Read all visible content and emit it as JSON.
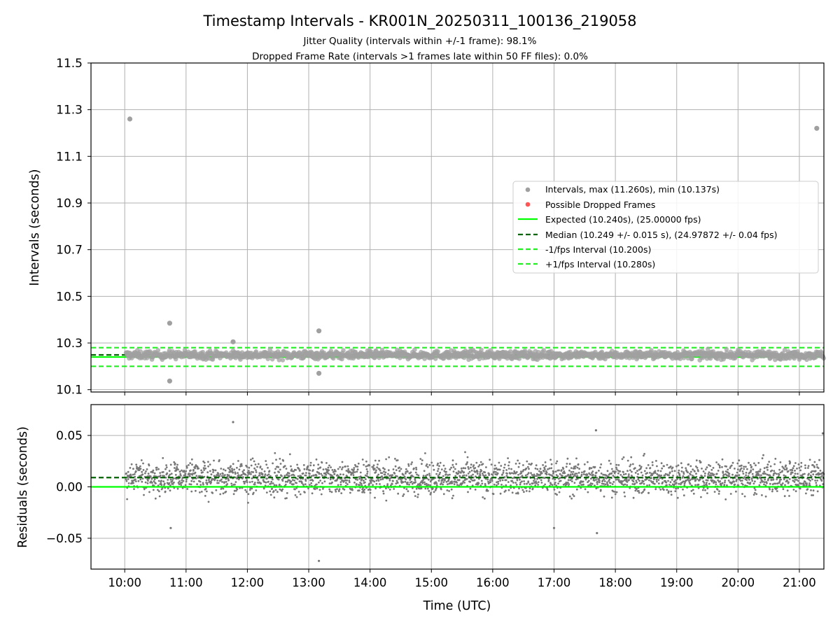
{
  "chart_data": [
    {
      "type": "scatter",
      "title": "Timestamp Intervals - KR001N_20250311_100136_219058",
      "subtitle_lines": [
        "Jitter Quality (intervals within +/-1 frame): 98.1%",
        "Dropped Frame Rate (intervals >1 frames late within 50 FF files): 0.0%"
      ],
      "ylabel": "Intervals (seconds)",
      "ylim": [
        10.09,
        11.5
      ],
      "yticks": [
        "10.1",
        "10.3",
        "10.5",
        "10.7",
        "10.9",
        "11.1",
        "11.3",
        "11.5"
      ],
      "grid": true,
      "legend_position": "center-right",
      "legend": [
        {
          "label": "Intervals, max (11.260s), min (10.137s)",
          "kind": "dot",
          "color": "#a0a0a0"
        },
        {
          "label": "Possible Dropped Frames",
          "kind": "dot",
          "color": "#ff5555"
        },
        {
          "label": "Expected (10.240s), (25.00000 fps)",
          "kind": "solid",
          "color": "#00ff00"
        },
        {
          "label": "Median (10.249 +/- 0.015 s), (24.97872 +/- 0.04 fps)",
          "kind": "dashed",
          "color": "#006400"
        },
        {
          "label": "-1/fps Interval (10.200s)",
          "kind": "dashed",
          "color": "#22ee22"
        },
        {
          "label": "+1/fps Interval (10.280s)",
          "kind": "dashed",
          "color": "#22ee22"
        }
      ],
      "reference_lines": {
        "expected": 10.24,
        "median": 10.249,
        "minus_one_fps": 10.2,
        "plus_one_fps": 10.28
      },
      "series": [
        {
          "name": "Intervals, max (11.260s), min (10.137s)",
          "color": "#a0a0a0",
          "band": [
            10.2,
            10.28
          ],
          "outliers": [
            {
              "x": "10:05",
              "y": 11.26
            },
            {
              "x": "21:17",
              "y": 11.22
            },
            {
              "x": "10:44",
              "y": 10.385
            },
            {
              "x": "10:44",
              "y": 10.137
            },
            {
              "x": "13:10",
              "y": 10.352
            },
            {
              "x": "13:10",
              "y": 10.17
            },
            {
              "x": "11:46",
              "y": 10.305
            }
          ]
        },
        {
          "name": "Possible Dropped Frames",
          "color": "#ff5555",
          "points": []
        }
      ]
    },
    {
      "type": "scatter",
      "xlabel": "Time (UTC)",
      "ylabel": "Residuals (seconds)",
      "ylim": [
        -0.08,
        0.08
      ],
      "yticks": [
        "0.05",
        "0.00",
        "−0.05"
      ],
      "xticks": [
        "10:00",
        "11:00",
        "12:00",
        "13:00",
        "14:00",
        "15:00",
        "16:00",
        "17:00",
        "18:00",
        "19:00",
        "20:00",
        "21:00"
      ],
      "xlim": [
        "09:27",
        "21:24"
      ],
      "data_start": "10:01",
      "grid": true,
      "reference_lines": {
        "zero": 0.0,
        "median_offset": 0.009
      },
      "series": [
        {
          "name": "Residuals",
          "color": "#777777",
          "band": [
            -0.03,
            0.045
          ],
          "outliers": [
            {
              "x": "11:46",
              "y": 0.063
            },
            {
              "x": "13:10",
              "y": -0.072
            },
            {
              "x": "17:41",
              "y": 0.055
            },
            {
              "x": "17:42",
              "y": -0.045
            },
            {
              "x": "17:00",
              "y": -0.04
            },
            {
              "x": "21:23",
              "y": 0.052
            },
            {
              "x": "10:45",
              "y": -0.04
            }
          ]
        }
      ]
    }
  ],
  "colors": {
    "points": "#a0a0a0",
    "residual_points": "#777777",
    "expected": "#00ff00",
    "median": "#006400",
    "bounds": "#22ee22",
    "dropped": "#ff5555",
    "grid": "#b0b0b0"
  }
}
